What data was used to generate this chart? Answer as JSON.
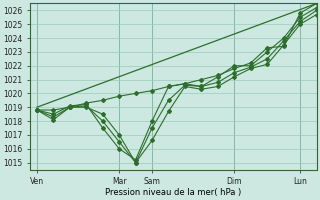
{
  "title": "Pression niveau de la mer( hPa )",
  "bg_color": "#cce8e0",
  "grid_color": "#99ccbb",
  "line_color": "#2d6e2d",
  "ylim": [
    1014.5,
    1026.5
  ],
  "yticks": [
    1015,
    1016,
    1017,
    1018,
    1019,
    1020,
    1021,
    1022,
    1023,
    1024,
    1025,
    1026
  ],
  "day_labels": [
    "Ven",
    "Mar",
    "Sam",
    "Dim",
    "Lun"
  ],
  "day_positions": [
    0.0,
    2.5,
    3.5,
    6.0,
    8.0
  ],
  "xlim": [
    -0.2,
    8.5
  ],
  "xlabel": "Pression niveau de la mer( hPa )",
  "lines": [
    {
      "x": [
        0,
        0.5,
        1.0,
        1.5,
        2.0,
        2.5,
        3.0,
        3.5,
        4.0,
        4.5,
        5.0,
        5.5,
        6.0,
        6.5,
        7.0,
        7.5,
        8.0,
        8.5
      ],
      "y": [
        1018.8,
        1018.1,
        1019.0,
        1019.0,
        1018.5,
        1017.0,
        1015.0,
        1016.6,
        1018.7,
        1020.5,
        1020.3,
        1020.5,
        1021.2,
        1021.8,
        1022.1,
        1023.5,
        1025.0,
        1025.7
      ]
    },
    {
      "x": [
        0,
        0.5,
        1.0,
        1.5,
        2.0,
        2.5,
        3.0,
        3.5,
        4.0,
        4.5,
        5.0,
        5.5,
        6.0,
        6.5,
        7.0,
        7.5,
        8.0,
        8.5
      ],
      "y": [
        1018.8,
        1018.3,
        1019.0,
        1019.1,
        1018.0,
        1016.5,
        1015.0,
        1017.5,
        1019.5,
        1020.6,
        1020.5,
        1020.8,
        1021.5,
        1021.9,
        1022.5,
        1023.8,
        1025.2,
        1026.0
      ]
    },
    {
      "x": [
        0,
        0.5,
        1.0,
        1.5,
        2.0,
        2.5,
        3.0,
        3.5,
        4.0,
        4.5,
        5.0,
        5.5,
        6.0,
        6.5,
        7.0,
        7.5,
        8.0,
        8.5
      ],
      "y": [
        1018.8,
        1018.5,
        1019.1,
        1019.2,
        1017.5,
        1016.0,
        1015.2,
        1018.0,
        1020.5,
        1020.7,
        1020.5,
        1021.2,
        1022.0,
        1022.0,
        1023.0,
        1024.0,
        1025.5,
        1026.2
      ]
    },
    {
      "x": [
        0,
        0.5,
        1.0,
        1.5,
        2.0,
        2.5,
        3.0,
        3.5,
        4.0,
        4.5,
        5.0,
        5.5,
        6.0,
        6.5,
        7.0,
        7.5,
        8.0,
        8.5
      ],
      "y": [
        1018.8,
        1018.8,
        1019.0,
        1019.3,
        1019.5,
        1019.8,
        1020.0,
        1020.2,
        1020.5,
        1020.7,
        1021.0,
        1021.3,
        1021.8,
        1022.2,
        1023.3,
        1023.4,
        1025.8,
        1026.5
      ]
    },
    {
      "x": [
        0,
        8.5
      ],
      "y": [
        1019.0,
        1026.5
      ]
    }
  ]
}
